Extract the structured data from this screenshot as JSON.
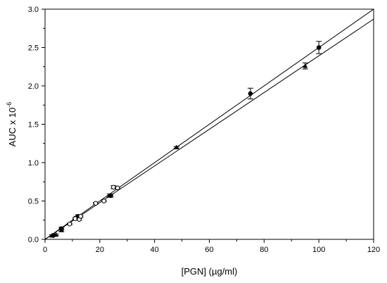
{
  "chart_data": {
    "type": "scatter",
    "xlabel": "[PGN] (µg/ml)",
    "ylabel": "AUC x 10",
    "ylabel_exponent": "-6",
    "xlim": [
      0,
      120
    ],
    "ylim": [
      0,
      3.0
    ],
    "x_ticks": [
      0,
      20,
      40,
      60,
      80,
      100,
      120
    ],
    "y_ticks": [
      0.0,
      0.5,
      1.0,
      1.5,
      2.0,
      2.5,
      3.0
    ],
    "x_tick_labels": [
      "0",
      "20",
      "40",
      "60",
      "80",
      "100",
      "120"
    ],
    "y_tick_labels": [
      "0.0",
      "0.5",
      "1.0",
      "1.5",
      "2.0",
      "2.5",
      "3.0"
    ],
    "grid": false,
    "legend": "none",
    "series": [
      {
        "marker": "filled-circle",
        "color": "#000000",
        "points": [
          {
            "x": 3,
            "y": 0.05,
            "err": 0.01
          },
          {
            "x": 6,
            "y": 0.14,
            "err": 0.02
          },
          {
            "x": 12,
            "y": 0.3,
            "err": 0.02
          },
          {
            "x": 24,
            "y": 0.57,
            "err": 0.02
          },
          {
            "x": 75,
            "y": 1.9,
            "err": 0.07
          },
          {
            "x": 100,
            "y": 2.5,
            "err": 0.08
          }
        ],
        "fit": {
          "x0": 0,
          "y0": 0,
          "x1": 120,
          "y1": 3.0
        }
      },
      {
        "marker": "filled-triangle",
        "color": "#000000",
        "points": [
          {
            "x": 2.5,
            "y": 0.05,
            "err": 0.01
          },
          {
            "x": 4,
            "y": 0.06,
            "err": 0.01
          },
          {
            "x": 6,
            "y": 0.12,
            "err": 0.02
          },
          {
            "x": 11.5,
            "y": 0.28,
            "err": 0.02
          },
          {
            "x": 23.5,
            "y": 0.57,
            "err": 0.02
          },
          {
            "x": 48,
            "y": 1.2,
            "err": 0.01
          },
          {
            "x": 95,
            "y": 2.26,
            "err": 0.04
          }
        ],
        "fit": {
          "x0": 0,
          "y0": 0,
          "x1": 120,
          "y1": 2.87
        }
      },
      {
        "marker": "open-circle",
        "color": "#000000",
        "points": [
          {
            "x": 9,
            "y": 0.2,
            "err": 0.01
          },
          {
            "x": 11,
            "y": 0.27,
            "err": 0.01
          },
          {
            "x": 12.5,
            "y": 0.26,
            "err": 0.01
          },
          {
            "x": 13,
            "y": 0.3,
            "err": 0.01
          },
          {
            "x": 18.5,
            "y": 0.47,
            "err": 0.01
          },
          {
            "x": 21.5,
            "y": 0.5,
            "err": 0.01
          },
          {
            "x": 25,
            "y": 0.68,
            "err": 0.02
          },
          {
            "x": 26.5,
            "y": 0.67,
            "err": 0.01
          }
        ]
      }
    ]
  }
}
